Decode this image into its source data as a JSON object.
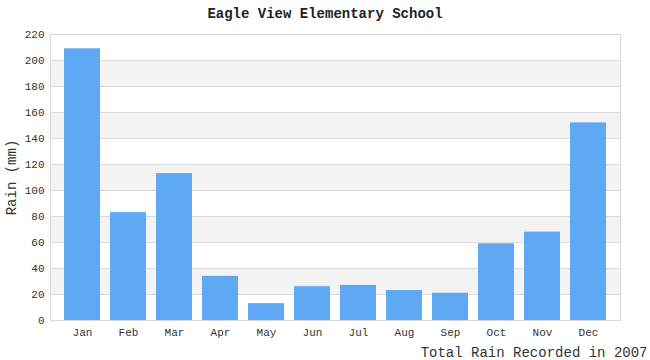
{
  "chart_data": {
    "type": "bar",
    "title": "Eagle View Elementary School",
    "x_label": "Total Rain Recorded in 2007",
    "y_label": "Rain (mm)",
    "categories": [
      "Jan",
      "Feb",
      "Mar",
      "Apr",
      "May",
      "Jun",
      "Jul",
      "Aug",
      "Sep",
      "Oct",
      "Nov",
      "Dec"
    ],
    "values": [
      209,
      83,
      113,
      34,
      13,
      26,
      27,
      23,
      21,
      59,
      68,
      152
    ],
    "color": "#5ea8f4",
    "ylim": [
      0,
      220
    ],
    "yticks": [
      0,
      20,
      40,
      60,
      80,
      100,
      120,
      140,
      160,
      180,
      200,
      220
    ],
    "grid": true
  }
}
